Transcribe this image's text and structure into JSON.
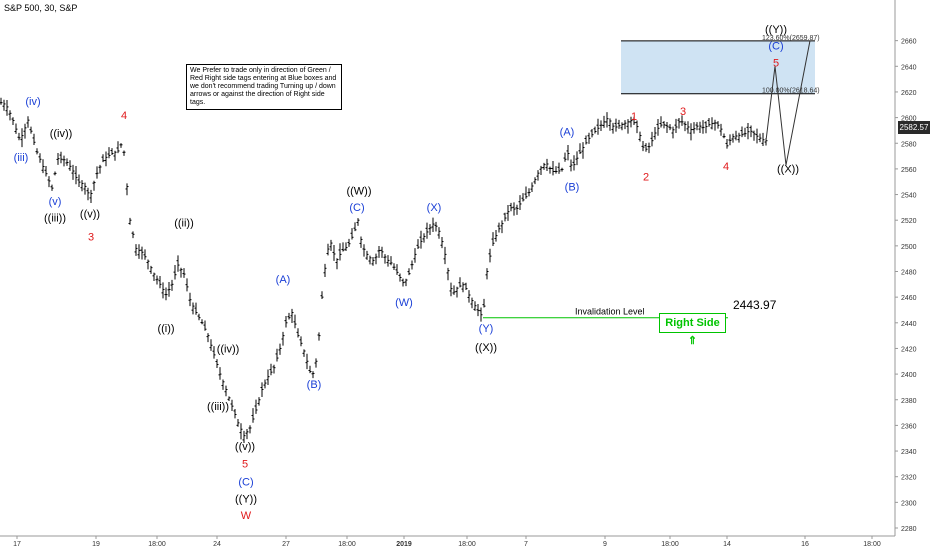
{
  "header": {
    "title": "S&P 500, 30, S&P"
  },
  "note": {
    "text": "We Prefer to trade only in direction of Green / Red Right side tags entering at Blue boxes and we don't recommend trading Turning up / down arrows or against the direction of Right side tags."
  },
  "invalidation": {
    "label": "Invalidation Level",
    "value_text": "2443.97",
    "value": 2443.97
  },
  "right_side": {
    "label": "Right Side",
    "arrow": "⇑"
  },
  "target_zone": {
    "upper_label": "123.60%(2659.87)",
    "lower_label": "100.00%(2618.64)",
    "upper": 2659.87,
    "lower": 2618.64
  },
  "last_price": {
    "text": "2582.57",
    "value": 2582.57
  },
  "colors": {
    "blue": "#1a3fd6",
    "red": "#e0191b",
    "black": "#000000",
    "green": "#00c400",
    "box_fill": "#cfe3f3",
    "bar": "#000000",
    "axis": "#666666"
  },
  "chart_data": {
    "type": "ohlc",
    "y_range": [
      2280,
      2680
    ],
    "y_ticks": [
      2280,
      2300,
      2320,
      2340,
      2360,
      2380,
      2400,
      2420,
      2440,
      2460,
      2480,
      2500,
      2520,
      2540,
      2560,
      2580,
      2600,
      2620,
      2640,
      2660
    ],
    "x_ticks": [
      "17",
      "19",
      "18:00",
      "24",
      "27",
      "18:00",
      "2019",
      "18:00",
      "7",
      "9",
      "18:00",
      "14",
      "16",
      "18:00"
    ],
    "grid": false,
    "path": [
      [
        0,
        2612
      ],
      [
        6,
        2610
      ],
      [
        12,
        2600
      ],
      [
        20,
        2582
      ],
      [
        28,
        2598
      ],
      [
        36,
        2575
      ],
      [
        44,
        2560
      ],
      [
        52,
        2545
      ],
      [
        58,
        2568
      ],
      [
        65,
        2567
      ],
      [
        72,
        2560
      ],
      [
        78,
        2550
      ],
      [
        84,
        2548
      ],
      [
        90,
        2538
      ],
      [
        96,
        2555
      ],
      [
        104,
        2568
      ],
      [
        112,
        2572
      ],
      [
        118,
        2574
      ],
      [
        123,
        2582
      ],
      [
        126,
        2555
      ],
      [
        130,
        2520
      ],
      [
        136,
        2498
      ],
      [
        142,
        2495
      ],
      [
        148,
        2488
      ],
      [
        154,
        2478
      ],
      [
        160,
        2470
      ],
      [
        166,
        2462
      ],
      [
        172,
        2470
      ],
      [
        178,
        2485
      ],
      [
        184,
        2478
      ],
      [
        190,
        2458
      ],
      [
        196,
        2448
      ],
      [
        202,
        2440
      ],
      [
        208,
        2430
      ],
      [
        214,
        2415
      ],
      [
        220,
        2400
      ],
      [
        226,
        2388
      ],
      [
        232,
        2375
      ],
      [
        238,
        2362
      ],
      [
        244,
        2352
      ],
      [
        250,
        2358
      ],
      [
        256,
        2372
      ],
      [
        262,
        2388
      ],
      [
        268,
        2398
      ],
      [
        274,
        2405
      ],
      [
        280,
        2420
      ],
      [
        286,
        2440
      ],
      [
        292,
        2448
      ],
      [
        298,
        2430
      ],
      [
        304,
        2418
      ],
      [
        310,
        2402
      ],
      [
        314,
        2400
      ],
      [
        318,
        2420
      ],
      [
        322,
        2460
      ],
      [
        326,
        2490
      ],
      [
        330,
        2505
      ],
      [
        336,
        2488
      ],
      [
        342,
        2496
      ],
      [
        348,
        2500
      ],
      [
        354,
        2510
      ],
      [
        358,
        2520
      ],
      [
        362,
        2500
      ],
      [
        368,
        2492
      ],
      [
        374,
        2488
      ],
      [
        380,
        2498
      ],
      [
        386,
        2490
      ],
      [
        392,
        2486
      ],
      [
        398,
        2478
      ],
      [
        404,
        2470
      ],
      [
        410,
        2480
      ],
      [
        416,
        2496
      ],
      [
        422,
        2505
      ],
      [
        428,
        2512
      ],
      [
        434,
        2518
      ],
      [
        440,
        2510
      ],
      [
        446,
        2490
      ],
      [
        452,
        2462
      ],
      [
        458,
        2468
      ],
      [
        464,
        2470
      ],
      [
        470,
        2460
      ],
      [
        476,
        2452
      ],
      [
        483,
        2444
      ],
      [
        487,
        2480
      ],
      [
        492,
        2500
      ],
      [
        498,
        2512
      ],
      [
        504,
        2520
      ],
      [
        510,
        2530
      ],
      [
        516,
        2528
      ],
      [
        522,
        2535
      ],
      [
        528,
        2540
      ],
      [
        534,
        2550
      ],
      [
        540,
        2560
      ],
      [
        546,
        2565
      ],
      [
        552,
        2558
      ],
      [
        558,
        2558
      ],
      [
        563,
        2560
      ],
      [
        567,
        2575
      ],
      [
        572,
        2560
      ],
      [
        578,
        2570
      ],
      [
        584,
        2578
      ],
      [
        590,
        2585
      ],
      [
        596,
        2590
      ],
      [
        602,
        2595
      ],
      [
        608,
        2600
      ],
      [
        614,
        2592
      ],
      [
        620,
        2594
      ],
      [
        626,
        2596
      ],
      [
        632,
        2598
      ],
      [
        638,
        2592
      ],
      [
        644,
        2574
      ],
      [
        650,
        2578
      ],
      [
        656,
        2590
      ],
      [
        662,
        2595
      ],
      [
        668,
        2593
      ],
      [
        674,
        2590
      ],
      [
        680,
        2598
      ],
      [
        686,
        2594
      ],
      [
        692,
        2590
      ],
      [
        698,
        2594
      ],
      [
        704,
        2592
      ],
      [
        710,
        2595
      ],
      [
        716,
        2596
      ],
      [
        722,
        2590
      ],
      [
        727,
        2578
      ],
      [
        732,
        2585
      ],
      [
        738,
        2586
      ],
      [
        744,
        2587
      ],
      [
        750,
        2590
      ],
      [
        756,
        2586
      ],
      [
        762,
        2583
      ],
      [
        766,
        2582
      ]
    ],
    "projection": [
      [
        766,
        2582
      ],
      [
        775,
        2640
      ],
      [
        786,
        2563
      ],
      [
        810,
        2660
      ]
    ],
    "labels": [
      {
        "text": "(iv)",
        "color": "blue",
        "t": 33,
        "v": 2610
      },
      {
        "text": "(iii)",
        "color": "blue",
        "t": 21,
        "v": 2566
      },
      {
        "text": "((iv))",
        "color": "black",
        "t": 61,
        "v": 2585
      },
      {
        "text": "(v)",
        "color": "blue",
        "t": 55,
        "v": 2532
      },
      {
        "text": "((iii))",
        "color": "black",
        "t": 55,
        "v": 2519
      },
      {
        "text": "4",
        "color": "red",
        "t": 124,
        "v": 2599
      },
      {
        "text": "((v))",
        "color": "black",
        "t": 90,
        "v": 2522
      },
      {
        "text": "3",
        "color": "red",
        "t": 91,
        "v": 2504
      },
      {
        "text": "((ii))",
        "color": "black",
        "t": 184,
        "v": 2515
      },
      {
        "text": "((i))",
        "color": "black",
        "t": 166,
        "v": 2433
      },
      {
        "text": "((iv))",
        "color": "black",
        "t": 228,
        "v": 2417
      },
      {
        "text": "((iii))",
        "color": "black",
        "t": 218,
        "v": 2372
      },
      {
        "text": "((v))",
        "color": "black",
        "t": 245,
        "v": 2341
      },
      {
        "text": "5",
        "color": "red",
        "t": 245,
        "v": 2327
      },
      {
        "text": "(C)",
        "color": "blue",
        "t": 246,
        "v": 2313
      },
      {
        "text": "((Y))",
        "color": "black",
        "t": 246,
        "v": 2300
      },
      {
        "text": "W",
        "color": "red",
        "t": 246,
        "v": 2287
      },
      {
        "text": "(A)",
        "color": "blue",
        "t": 283,
        "v": 2471
      },
      {
        "text": "(B)",
        "color": "blue",
        "t": 314,
        "v": 2389
      },
      {
        "text": "((W))",
        "color": "black",
        "t": 359,
        "v": 2540
      },
      {
        "text": "(C)",
        "color": "blue",
        "t": 357,
        "v": 2527
      },
      {
        "text": "(X)",
        "color": "blue",
        "t": 434,
        "v": 2527
      },
      {
        "text": "(W)",
        "color": "blue",
        "t": 404,
        "v": 2453
      },
      {
        "text": "(Y)",
        "color": "blue",
        "t": 486,
        "v": 2433
      },
      {
        "text": "((X))",
        "color": "black",
        "t": 486,
        "v": 2418
      },
      {
        "text": "(A)",
        "color": "blue",
        "t": 567,
        "v": 2586
      },
      {
        "text": "(B)",
        "color": "blue",
        "t": 572,
        "v": 2543
      },
      {
        "text": "1",
        "color": "red",
        "t": 634,
        "v": 2598
      },
      {
        "text": "2",
        "color": "red",
        "t": 646,
        "v": 2551
      },
      {
        "text": "3",
        "color": "red",
        "t": 683,
        "v": 2602
      },
      {
        "text": "4",
        "color": "red",
        "t": 726,
        "v": 2559
      },
      {
        "text": "((X))",
        "color": "black",
        "t": 788,
        "v": 2557
      },
      {
        "text": "((Y))",
        "color": "black",
        "t": 776,
        "v": 2666
      },
      {
        "text": "(C)",
        "color": "blue",
        "t": 776,
        "v": 2653
      },
      {
        "text": "5",
        "color": "red",
        "t": 776,
        "v": 2640
      }
    ]
  }
}
